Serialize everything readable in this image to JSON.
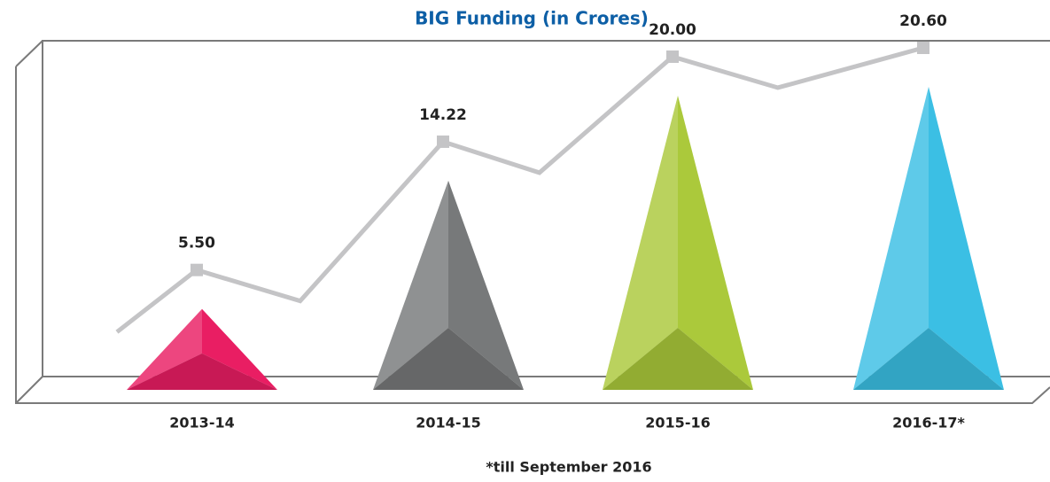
{
  "chart_data": {
    "type": "bar",
    "title": "BIG Funding (in Crores)",
    "categories": [
      "2013-14",
      "2014-15",
      "2015-16",
      "2016-17*"
    ],
    "values": [
      5.5,
      14.22,
      20,
      20.6
    ],
    "value_labels": [
      "5.50",
      "14.22",
      "20.00",
      "20.60"
    ],
    "colors": [
      "#e91e63",
      "#77797a",
      "#abc93b",
      "#3bbfe4"
    ],
    "line_color": "#c4c4c6",
    "note": "*till September 2016"
  }
}
